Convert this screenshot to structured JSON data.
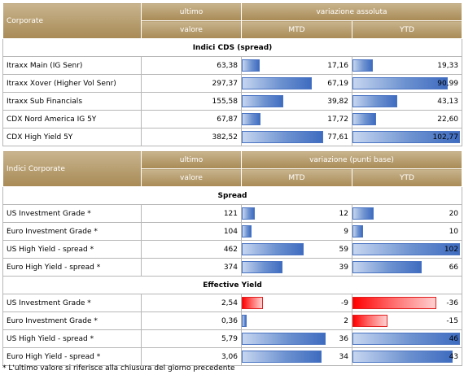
{
  "table1": {
    "header": {
      "corner": "Corporate",
      "col_last_top": "ultimo",
      "col_last_bottom": "valore",
      "group": "variazione assoluta",
      "mtd": "MTD",
      "ytd": "YTD"
    },
    "section": "Indici CDS (spread)",
    "rows": [
      {
        "name": "Itraxx Main (IG Senr)",
        "last": "63,38",
        "mtd": "17,16",
        "ytd": "19,33",
        "mtd_v": 17.16,
        "ytd_v": 19.33
      },
      {
        "name": "Itraxx Xover (Higher Vol Senr)",
        "last": "297,37",
        "mtd": "67,19",
        "ytd": "90,99",
        "mtd_v": 67.19,
        "ytd_v": 90.99
      },
      {
        "name": "Itraxx Sub Financials",
        "last": "155,58",
        "mtd": "39,82",
        "ytd": "43,13",
        "mtd_v": 39.82,
        "ytd_v": 43.13
      },
      {
        "name": "CDX Nord America IG 5Y",
        "last": "67,87",
        "mtd": "17,72",
        "ytd": "22,60",
        "mtd_v": 17.72,
        "ytd_v": 22.6
      },
      {
        "name": "CDX High Yield 5Y",
        "last": "382,52",
        "mtd": "77,61",
        "ytd": "102,77",
        "mtd_v": 77.61,
        "ytd_v": 102.77
      }
    ]
  },
  "table2": {
    "header": {
      "corner": "Indici Corporate",
      "col_last_top": "ultimo",
      "col_last_bottom": "valore",
      "group": "variazione (punti base)",
      "mtd": "MTD",
      "ytd": "YTD"
    },
    "sections": [
      {
        "title": "Spread",
        "rows": [
          {
            "name": "US Investment Grade *",
            "last": "121",
            "mtd": "12",
            "ytd": "20",
            "mtd_v": 12,
            "ytd_v": 20
          },
          {
            "name": "Euro Investment Grade *",
            "last": "104",
            "mtd": "9",
            "ytd": "10",
            "mtd_v": 9,
            "ytd_v": 10
          },
          {
            "name": "US High Yield - spread *",
            "last": "462",
            "mtd": "59",
            "ytd": "102",
            "mtd_v": 59,
            "ytd_v": 102
          },
          {
            "name": "Euro High Yield - spread *",
            "last": "374",
            "mtd": "39",
            "ytd": "66",
            "mtd_v": 39,
            "ytd_v": 66
          }
        ]
      },
      {
        "title": "Effective Yield",
        "rows": [
          {
            "name": "US Investment Grade *",
            "last": "2,54",
            "mtd": "-9",
            "ytd": "-36",
            "mtd_v": -9,
            "ytd_v": -36
          },
          {
            "name": "Euro Investment Grade *",
            "last": "0,36",
            "mtd": "2",
            "ytd": "-15",
            "mtd_v": 2,
            "ytd_v": -15
          },
          {
            "name": "US High Yield - spread *",
            "last": "5,79",
            "mtd": "36",
            "ytd": "46",
            "mtd_v": 36,
            "ytd_v": 46
          },
          {
            "name": "Euro High Yield - spread *",
            "last": "3,06",
            "mtd": "34",
            "ytd": "43",
            "mtd_v": 34,
            "ytd_v": 43
          }
        ]
      }
    ]
  },
  "footnote": "* L'ultimo valore si riferisce alla chiusura del giorno precedente",
  "colors": {
    "header_gold": "#b09263",
    "bar_blue": "#4a74c2",
    "bar_red": "#ff0000"
  }
}
